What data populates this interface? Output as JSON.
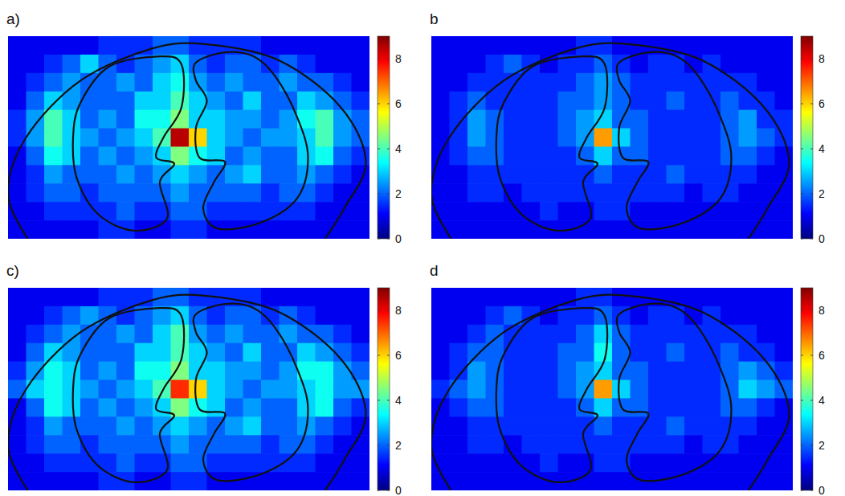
{
  "chart_data": [
    {
      "type": "heatmap",
      "title": "a)",
      "colorbar_range": [
        0,
        9
      ],
      "colorbar_ticks": [
        0,
        2,
        4,
        6,
        8
      ],
      "cells": [
        [
          1,
          1,
          1,
          1,
          1,
          1.5,
          1.5,
          1.5,
          2,
          2,
          1.5,
          1.5,
          1.5,
          1.5,
          1,
          1,
          1,
          1,
          1,
          1
        ],
        [
          1,
          1,
          1.5,
          2,
          3,
          2,
          1.5,
          2,
          2.5,
          3,
          2,
          1.5,
          2,
          2,
          1.5,
          2,
          1.5,
          1,
          1,
          1
        ],
        [
          1,
          1.5,
          2,
          2.5,
          2,
          2,
          2.5,
          2,
          3,
          3.5,
          2.5,
          2,
          2.5,
          2,
          2,
          2.5,
          2,
          2,
          1.5,
          1
        ],
        [
          1,
          2,
          3,
          2.5,
          2,
          2,
          2,
          3,
          3,
          4,
          3,
          2.5,
          2,
          3,
          2,
          2,
          3,
          2.5,
          2,
          1.5
        ],
        [
          1.5,
          2.5,
          4,
          3,
          2,
          2.5,
          2,
          3.5,
          3.5,
          4.5,
          3,
          3,
          2.5,
          2.5,
          2,
          2.5,
          3.5,
          4,
          2.5,
          2
        ],
        [
          1.5,
          2.5,
          4,
          3,
          2.5,
          2,
          2.5,
          3,
          4,
          8.5,
          6,
          3,
          2.5,
          2,
          2.5,
          2.5,
          3,
          4,
          2.5,
          2
        ],
        [
          1,
          2,
          3.5,
          3,
          2,
          2.5,
          2,
          2.5,
          3,
          4.5,
          3.5,
          3,
          2,
          2.5,
          2,
          2,
          3,
          3.5,
          2,
          1.5
        ],
        [
          1,
          1.5,
          2.5,
          2,
          2,
          2,
          2.5,
          2,
          2.5,
          3,
          2.5,
          2,
          2.5,
          3,
          2,
          2,
          2.5,
          2,
          1.5,
          1
        ],
        [
          1,
          1.5,
          2,
          2,
          1.5,
          2,
          2,
          2,
          2,
          2.5,
          2,
          2,
          2,
          2,
          1.5,
          2,
          2,
          1.5,
          1,
          1
        ],
        [
          1,
          1,
          1.5,
          1.5,
          1.5,
          1.5,
          2,
          1.5,
          1.5,
          2,
          2,
          1.5,
          1.5,
          1.5,
          1.5,
          1.5,
          1.5,
          1,
          1,
          1
        ],
        [
          1,
          1,
          1,
          1,
          1,
          1.5,
          1.5,
          1,
          1,
          1.5,
          1.5,
          1,
          1,
          1,
          1,
          1,
          1,
          1,
          1,
          1
        ]
      ]
    },
    {
      "type": "heatmap",
      "title": "b",
      "colorbar_range": [
        0,
        9
      ],
      "colorbar_ticks": [
        0,
        2,
        4,
        6,
        8
      ],
      "cells": [
        [
          1,
          1,
          1,
          1,
          1,
          1,
          1,
          1,
          1.5,
          1.5,
          1,
          1,
          1,
          1,
          1,
          1,
          1,
          1,
          1,
          1
        ],
        [
          1,
          1,
          1,
          1.5,
          2,
          1.5,
          1,
          1.5,
          1.5,
          2,
          1.5,
          1,
          1.5,
          1.5,
          1,
          1.5,
          1,
          1,
          1,
          1
        ],
        [
          1,
          1,
          1.5,
          1.5,
          1.5,
          1.5,
          1.5,
          1.5,
          2,
          2.5,
          2,
          1.5,
          1.5,
          1.5,
          1.5,
          1.5,
          1.5,
          1.5,
          1,
          1
        ],
        [
          1,
          1.5,
          2,
          1.5,
          1.5,
          1.5,
          1.5,
          2,
          2,
          2.5,
          2,
          1.5,
          1.5,
          2,
          1.5,
          1.5,
          2,
          1.5,
          1.5,
          1
        ],
        [
          1,
          1.5,
          2.5,
          2,
          1.5,
          1.5,
          1.5,
          2,
          2.5,
          3,
          2,
          2,
          1.5,
          1.5,
          1.5,
          1.5,
          2,
          2.5,
          1.5,
          1.5
        ],
        [
          1,
          1.5,
          2.5,
          2,
          1.5,
          1.5,
          1.5,
          2,
          2.5,
          6.5,
          3,
          2,
          1.5,
          1.5,
          1.5,
          1.5,
          2,
          2.5,
          2,
          1.5
        ],
        [
          1,
          1.5,
          2,
          2,
          1.5,
          1.5,
          1.5,
          1.5,
          2,
          3,
          2,
          2,
          1.5,
          1.5,
          1.5,
          1.5,
          2,
          2,
          1.5,
          1
        ],
        [
          1,
          1,
          1.5,
          1.5,
          1.5,
          1.5,
          1.5,
          1.5,
          1.5,
          2,
          1.5,
          1.5,
          1.5,
          2,
          1.5,
          1.5,
          1.5,
          1.5,
          1,
          1
        ],
        [
          1,
          1,
          1.5,
          1.5,
          1,
          1.5,
          1.5,
          1.5,
          1.5,
          1.5,
          1.5,
          1.5,
          1.5,
          1.5,
          1,
          1.5,
          1.5,
          1,
          1,
          1
        ],
        [
          1,
          1,
          1,
          1,
          1,
          1,
          1.5,
          1,
          1,
          1.5,
          1.5,
          1,
          1,
          1,
          1,
          1,
          1,
          1,
          1,
          1
        ],
        [
          1,
          1,
          1,
          1,
          1,
          1,
          1,
          1,
          1,
          1,
          1,
          1,
          1,
          1,
          1,
          1,
          1,
          1,
          1,
          1
        ]
      ]
    },
    {
      "type": "heatmap",
      "title": "c)",
      "colorbar_range": [
        0,
        9
      ],
      "colorbar_ticks": [
        0,
        2,
        4,
        6,
        8
      ],
      "cells": [
        [
          1,
          1,
          1,
          1,
          1,
          1.5,
          1.5,
          1.5,
          2,
          2,
          1.5,
          1.5,
          1.5,
          1.5,
          1,
          1,
          1,
          1,
          1,
          1
        ],
        [
          1,
          1,
          1.5,
          2,
          2.5,
          2,
          1.5,
          2,
          2.5,
          3,
          2,
          1.5,
          2,
          2,
          1.5,
          2,
          1.5,
          1,
          1,
          1
        ],
        [
          1,
          1.5,
          2,
          2.5,
          2,
          2,
          2.5,
          2,
          3,
          4,
          2.5,
          2,
          2.5,
          2,
          2,
          2.5,
          2,
          2,
          1.5,
          1
        ],
        [
          1,
          2,
          3,
          2.5,
          2,
          2,
          2,
          3,
          3,
          4,
          3,
          2.5,
          2,
          3,
          2,
          2,
          3,
          2.5,
          2,
          1.5
        ],
        [
          1.5,
          2.5,
          3.5,
          3,
          2,
          2.5,
          2,
          3.5,
          3.5,
          4.5,
          3,
          3,
          2.5,
          2.5,
          2,
          2.5,
          3.5,
          3.5,
          2.5,
          2
        ],
        [
          2,
          3,
          3.5,
          3,
          2.5,
          2,
          2.5,
          3,
          4,
          7.5,
          6,
          3,
          2.5,
          2,
          2.5,
          2.5,
          3,
          3.5,
          2.5,
          2.5
        ],
        [
          1,
          2,
          3.5,
          3,
          2,
          2.5,
          2,
          2.5,
          3,
          4.5,
          3.5,
          3,
          2,
          2.5,
          2,
          2,
          3,
          3.5,
          2,
          1.5
        ],
        [
          1,
          1.5,
          2.5,
          2,
          2,
          2,
          2.5,
          2,
          2.5,
          3,
          2.5,
          2,
          2.5,
          3,
          2,
          2,
          2.5,
          2,
          1.5,
          1
        ],
        [
          1,
          1.5,
          2,
          2,
          1.5,
          2,
          2,
          2,
          2,
          2.5,
          2,
          2,
          2,
          2,
          1.5,
          2,
          2,
          1.5,
          1,
          1
        ],
        [
          1,
          1,
          1.5,
          1.5,
          1.5,
          1.5,
          2,
          1.5,
          1.5,
          2,
          2,
          1.5,
          1.5,
          1.5,
          1.5,
          1.5,
          1.5,
          1,
          1,
          1
        ],
        [
          1,
          1,
          1,
          1,
          1,
          1.5,
          1.5,
          1,
          1,
          1.5,
          1.5,
          1,
          1,
          1,
          1,
          1,
          1,
          1,
          1,
          1
        ]
      ]
    },
    {
      "type": "heatmap",
      "title": "d",
      "colorbar_range": [
        0,
        9
      ],
      "colorbar_ticks": [
        0,
        2,
        4,
        6,
        8
      ],
      "cells": [
        [
          1,
          1,
          1,
          1,
          1,
          1,
          1,
          1,
          1.5,
          1.5,
          1,
          1,
          1,
          1,
          1,
          1,
          1,
          1,
          1,
          1
        ],
        [
          1,
          1,
          1,
          1.5,
          2,
          1.5,
          1,
          1.5,
          1.5,
          2,
          1.5,
          1,
          1.5,
          1.5,
          1,
          1.5,
          1,
          1,
          1,
          1
        ],
        [
          1,
          1,
          1.5,
          2,
          1.5,
          1.5,
          1.5,
          1.5,
          2,
          3,
          2,
          1.5,
          1.5,
          1.5,
          1.5,
          1.5,
          1.5,
          1.5,
          1,
          1
        ],
        [
          1,
          1.5,
          2,
          2,
          1.5,
          1.5,
          1.5,
          2,
          2,
          3.5,
          2,
          1.5,
          1.5,
          2,
          1.5,
          1.5,
          2,
          1.5,
          1.5,
          1
        ],
        [
          1,
          1.5,
          2.5,
          2,
          1.5,
          1.5,
          1.5,
          2,
          2.5,
          3,
          2,
          2,
          1.5,
          1.5,
          1.5,
          1.5,
          2,
          2.5,
          2,
          1.5
        ],
        [
          1.5,
          2,
          2.5,
          2,
          1.5,
          1.5,
          1.5,
          2,
          2.5,
          6.5,
          3,
          2,
          1.5,
          1.5,
          1.5,
          1.5,
          2,
          3,
          2.5,
          2
        ],
        [
          1,
          1.5,
          2,
          2,
          1.5,
          1.5,
          1.5,
          1.5,
          2,
          3,
          2,
          2,
          1.5,
          1.5,
          1.5,
          1.5,
          2,
          2,
          1.5,
          1
        ],
        [
          1,
          1,
          1.5,
          1.5,
          1.5,
          1.5,
          1.5,
          1.5,
          1.5,
          2,
          1.5,
          1.5,
          1.5,
          2,
          1.5,
          1.5,
          1.5,
          1.5,
          1,
          1
        ],
        [
          1,
          1,
          1.5,
          1.5,
          1,
          1.5,
          1.5,
          1.5,
          1.5,
          1.5,
          1.5,
          1.5,
          1.5,
          1.5,
          1,
          1.5,
          1.5,
          1,
          1,
          1
        ],
        [
          1,
          1,
          1,
          1,
          1,
          1,
          1.5,
          1,
          1,
          1.5,
          1.5,
          1,
          1,
          1,
          1,
          1,
          1,
          1,
          1,
          1
        ],
        [
          1,
          1,
          1,
          1,
          1,
          1,
          1,
          1,
          1,
          1,
          1,
          1,
          1,
          1,
          1,
          1,
          1,
          1,
          1,
          1
        ]
      ]
    }
  ]
}
